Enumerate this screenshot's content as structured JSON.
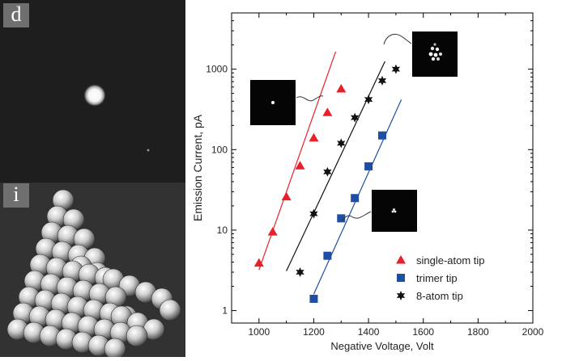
{
  "panel_labels": {
    "top": "d",
    "bottom": "i"
  },
  "icons": {
    "fem_image": "field-emission-microscope-pattern",
    "atom_model": "pyramid-atom-ball-model"
  },
  "chart_data": {
    "type": "scatter",
    "xlabel": "Negative Voltage, Volt",
    "ylabel": "Emission Current, pA",
    "xlim": [
      900,
      2000
    ],
    "ylim": [
      0.7,
      5000
    ],
    "yscale": "log",
    "grid": false,
    "legend_position": "bottom-right",
    "x_ticks": [
      "1000",
      "1200",
      "1400",
      "1600",
      "1800",
      "2000"
    ],
    "y_ticks": [
      "1",
      "10",
      "100",
      "1000"
    ],
    "series": [
      {
        "name": "single-atom tip",
        "marker": "triangle",
        "color": "#e8202a",
        "x": [
          1000,
          1050,
          1100,
          1150,
          1200,
          1250,
          1300
        ],
        "y": [
          3.9,
          9.5,
          26,
          63,
          140,
          290,
          570
        ],
        "fit": {
          "x": [
            1000,
            1280
          ],
          "y": [
            3.2,
            1650
          ]
        }
      },
      {
        "name": "trimer tip",
        "marker": "square",
        "color": "#1f4fa3",
        "x": [
          1200,
          1250,
          1300,
          1350,
          1400,
          1450
        ],
        "y": [
          1.4,
          4.8,
          14,
          25,
          62,
          150
        ],
        "fit": {
          "x": [
            1200,
            1520
          ],
          "y": [
            1.6,
            420
          ]
        }
      },
      {
        "name": "8-atom tip",
        "marker": "star",
        "color": "#111111",
        "x": [
          1150,
          1200,
          1250,
          1300,
          1350,
          1400,
          1450,
          1500
        ],
        "y": [
          3.0,
          16,
          53,
          120,
          250,
          420,
          720,
          1000
        ],
        "fit": {
          "x": [
            1100,
            1460
          ],
          "y": [
            3.1,
            1250
          ]
        }
      }
    ]
  }
}
